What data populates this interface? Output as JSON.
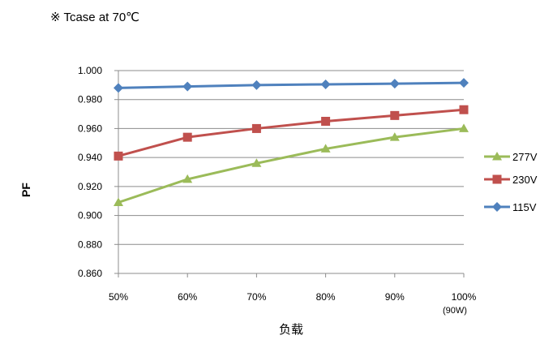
{
  "chart_data": {
    "type": "line",
    "title": "※ Tcase at 70℃",
    "xlabel": "负载",
    "ylabel": "PF",
    "categories": [
      "50%",
      "60%",
      "70%",
      "80%",
      "90%",
      "100%"
    ],
    "x_note": "(90W)",
    "ylim": [
      0.86,
      1.0
    ],
    "yticks": [
      "0.860",
      "0.880",
      "0.900",
      "0.920",
      "0.940",
      "0.960",
      "0.980",
      "1.000"
    ],
    "grid": true,
    "legend_position": "right",
    "series": [
      {
        "name": "277V",
        "values": [
          0.909,
          0.925,
          0.936,
          0.946,
          0.954,
          0.96
        ],
        "color": "#9BBB59",
        "marker": "triangle"
      },
      {
        "name": "230V",
        "values": [
          0.941,
          0.954,
          0.96,
          0.965,
          0.969,
          0.973
        ],
        "color": "#C0504D",
        "marker": "square"
      },
      {
        "name": "115V",
        "values": [
          0.988,
          0.989,
          0.99,
          0.9905,
          0.991,
          0.9915
        ],
        "color": "#4F81BD",
        "marker": "diamond"
      }
    ]
  }
}
